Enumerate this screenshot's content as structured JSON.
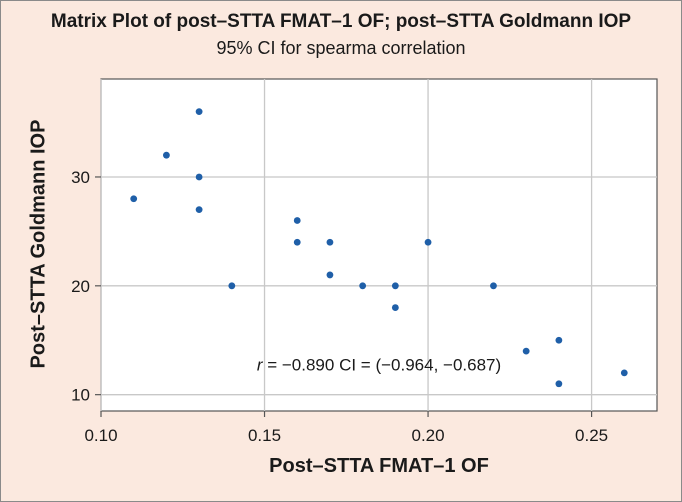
{
  "chart_data": {
    "type": "scatter",
    "title": "Matrix Plot of post–STTA FMAT–1 OF; post–STTA Goldmann IOP",
    "subtitle": "95% CI for spearma correlation",
    "xlabel": "Post–STTA FMAT–1 OF",
    "ylabel": "Post–STTA Goldmann IOP",
    "xlim": [
      0.1,
      0.27
    ],
    "ylim": [
      8.5,
      39
    ],
    "xticks": [
      0.1,
      0.15,
      0.2,
      0.25
    ],
    "xtick_labels": [
      "0.10",
      "0.15",
      "0.20",
      "0.25"
    ],
    "yticks": [
      10,
      20,
      30
    ],
    "ytick_labels": [
      "10",
      "20",
      "30"
    ],
    "grid": true,
    "point_color": "#1f5fa8",
    "annotation": {
      "r_symbol": "r",
      "text": " = −0.890 CI = (−0.964, −0.687)",
      "x": 0.185,
      "y": 12.2
    },
    "points": [
      {
        "x": 0.11,
        "y": 28
      },
      {
        "x": 0.12,
        "y": 32
      },
      {
        "x": 0.13,
        "y": 36
      },
      {
        "x": 0.13,
        "y": 30
      },
      {
        "x": 0.13,
        "y": 27
      },
      {
        "x": 0.14,
        "y": 20
      },
      {
        "x": 0.16,
        "y": 26
      },
      {
        "x": 0.16,
        "y": 24
      },
      {
        "x": 0.17,
        "y": 24
      },
      {
        "x": 0.17,
        "y": 21
      },
      {
        "x": 0.18,
        "y": 20
      },
      {
        "x": 0.19,
        "y": 20
      },
      {
        "x": 0.19,
        "y": 18
      },
      {
        "x": 0.2,
        "y": 24
      },
      {
        "x": 0.22,
        "y": 20
      },
      {
        "x": 0.23,
        "y": 14
      },
      {
        "x": 0.24,
        "y": 15
      },
      {
        "x": 0.24,
        "y": 11
      },
      {
        "x": 0.26,
        "y": 12
      }
    ]
  }
}
